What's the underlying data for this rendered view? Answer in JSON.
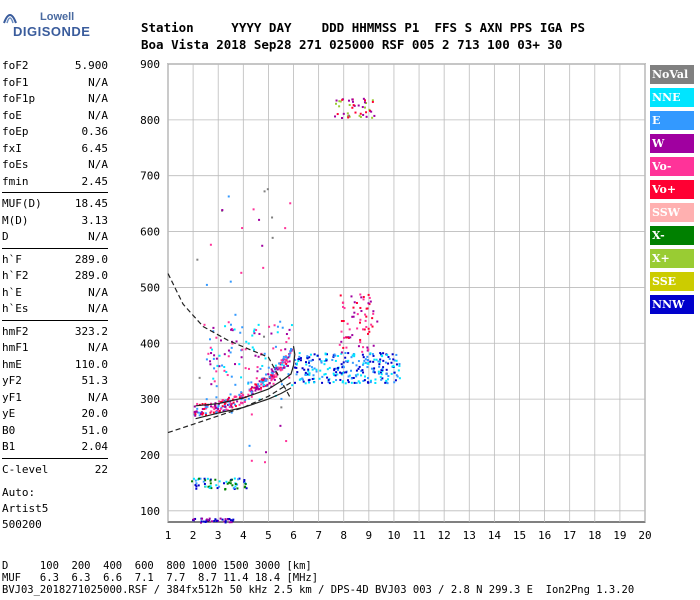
{
  "logo": {
    "brand": "Lowell",
    "product": "DIGISONDE"
  },
  "header": {
    "labels": "Station     YYYY DAY    DDD HHMMSS P1  FFS S AXN PPS IGA PS",
    "values": "Boa Vista 2018 Sep28 271 025000 RSF 005 2 713 100 03+ 30"
  },
  "params": {
    "group1": [
      {
        "name": "foF2",
        "value": "5.900"
      },
      {
        "name": "foF1",
        "value": "N/A"
      },
      {
        "name": "foF1p",
        "value": "N/A"
      },
      {
        "name": "foE",
        "value": "N/A"
      },
      {
        "name": "foEp",
        "value": "0.36"
      },
      {
        "name": "fxI",
        "value": "6.45"
      },
      {
        "name": "foEs",
        "value": "N/A"
      },
      {
        "name": "fmin",
        "value": "2.45"
      }
    ],
    "group2": [
      {
        "name": "MUF(D)",
        "value": "18.45"
      },
      {
        "name": "M(D)",
        "value": "3.13"
      },
      {
        "name": "D",
        "value": "N/A"
      }
    ],
    "group3": [
      {
        "name": "h`F",
        "value": "289.0"
      },
      {
        "name": "h`F2",
        "value": "289.0"
      },
      {
        "name": "h`E",
        "value": "N/A"
      },
      {
        "name": "h`Es",
        "value": "N/A"
      }
    ],
    "group4": [
      {
        "name": "hmF2",
        "value": "323.2"
      },
      {
        "name": "hmF1",
        "value": "N/A"
      },
      {
        "name": "hmE",
        "value": "110.0"
      },
      {
        "name": "yF2",
        "value": "51.3"
      },
      {
        "name": "yF1",
        "value": "N/A"
      },
      {
        "name": "yE",
        "value": "20.0"
      },
      {
        "name": "B0",
        "value": "51.0"
      },
      {
        "name": "B1",
        "value": "2.04"
      }
    ],
    "group5": [
      {
        "name": "C-level",
        "value": "22"
      }
    ]
  },
  "autoscaling": {
    "line1": "Auto:",
    "line2": "Artist5",
    "line3": "500200"
  },
  "legend": [
    {
      "label": "NoVal",
      "color": "#808080"
    },
    {
      "label": "NNE",
      "color": "#00e5ff"
    },
    {
      "label": "E",
      "color": "#3399ff"
    },
    {
      "label": "W",
      "color": "#a000a0"
    },
    {
      "label": "Vo-",
      "color": "#ff3399"
    },
    {
      "label": "Vo+",
      "color": "#ff0033"
    },
    {
      "label": "SSW",
      "color": "#ffb0b0"
    },
    {
      "label": "X-",
      "color": "#008000"
    },
    {
      "label": "X+",
      "color": "#99cc33"
    },
    {
      "label": "SSE",
      "color": "#cccc00"
    },
    {
      "label": "NNW",
      "color": "#0000cc"
    }
  ],
  "footer": {
    "line1": "D     100  200  400  600  800 1000 1500 3000 [km]",
    "line2": "MUF   6.3  6.3  6.6  7.1  7.7  8.7 11.4 18.4 [MHz]",
    "line3": "BVJ03_2018271025000.RSF / 384fx512h 50 kHz 2.5 km / DPS-4D BVJ03 003 / 2.8 N 299.3 E  Ion2Png 1.3.20"
  },
  "chart_data": {
    "type": "scatter",
    "title": "",
    "xlabel": "",
    "ylabel": "",
    "xlim": [
      1,
      20
    ],
    "ylim": [
      80,
      900
    ],
    "x_ticks": [
      1,
      2,
      3,
      4,
      5,
      6,
      7,
      8,
      9,
      10,
      11,
      12,
      13,
      14,
      15,
      16,
      17,
      18,
      19,
      20
    ],
    "y_ticks": [
      100,
      200,
      300,
      400,
      500,
      600,
      700,
      800,
      900
    ],
    "grid": true,
    "legend_position": "right",
    "clusters": [
      {
        "name": "F2 trace",
        "color_set": [
          "#ff0033",
          "#a000a0",
          "#ff3399",
          "#3399ff"
        ],
        "x_range": [
          2.0,
          5.9
        ],
        "y_start": 283,
        "y_end": 385,
        "count": 260
      },
      {
        "name": "F2 upper scatter",
        "color_set": [
          "#3399ff",
          "#a000a0",
          "#00e5ff",
          "#ff3399"
        ],
        "x_range": [
          2.5,
          6.0
        ],
        "y_range": [
          300,
          440
        ],
        "count": 120
      },
      {
        "name": "F2 spread",
        "color_set": [
          "#0000cc",
          "#3399ff",
          "#00e5ff"
        ],
        "x_range": [
          6.0,
          10.2
        ],
        "y_range": [
          330,
          385
        ],
        "count": 260
      },
      {
        "name": "F2 spread upper",
        "color_set": [
          "#a000a0",
          "#ff3399",
          "#ff0033"
        ],
        "x_range": [
          7.8,
          9.3
        ],
        "y_range": [
          385,
          490
        ],
        "count": 70
      },
      {
        "name": "800 km band",
        "color_set": [
          "#a000a0",
          "#ff0033",
          "#99cc33"
        ],
        "x_range": [
          7.6,
          9.2
        ],
        "y_range": [
          805,
          840
        ],
        "count": 45
      },
      {
        "name": "E band",
        "color_set": [
          "#00e5ff",
          "#3399ff",
          "#0000cc",
          "#008000"
        ],
        "x_range": [
          1.9,
          4.1
        ],
        "y_range": [
          140,
          160
        ],
        "count": 60
      },
      {
        "name": "low band",
        "color_set": [
          "#0000cc",
          "#a000a0"
        ],
        "x_range": [
          1.8,
          3.6
        ],
        "y_range": [
          80,
          88
        ],
        "count": 40
      },
      {
        "name": "sparse",
        "color_set": [
          "#3399ff",
          "#ff3399",
          "#a000a0",
          "#808080"
        ],
        "x_range": [
          2.0,
          6.0
        ],
        "y_range": [
          180,
          700
        ],
        "count": 40
      }
    ],
    "lines": [
      {
        "name": "dashed",
        "style": "dashed",
        "points": [
          [
            1.0,
            525
          ],
          [
            1.6,
            470
          ],
          [
            2.4,
            430
          ],
          [
            3.4,
            405
          ],
          [
            4.2,
            390
          ],
          [
            5.0,
            375
          ],
          [
            5.9,
            300
          ]
        ]
      },
      {
        "name": "lower dashed",
        "style": "dashed",
        "points": [
          [
            1.0,
            240
          ],
          [
            2.0,
            255
          ],
          [
            3.0,
            270
          ],
          [
            4.0,
            285
          ],
          [
            5.0,
            305
          ],
          [
            5.9,
            330
          ]
        ]
      },
      {
        "name": "profile",
        "style": "solid",
        "points": [
          [
            2.1,
            288
          ],
          [
            3.0,
            292
          ],
          [
            4.0,
            302
          ],
          [
            5.0,
            318
          ],
          [
            5.6,
            335
          ],
          [
            5.9,
            345
          ],
          [
            6.0,
            360
          ],
          [
            6.05,
            380
          ],
          [
            6.0,
            395
          ]
        ]
      },
      {
        "name": "lower profile",
        "style": "solid",
        "points": [
          [
            2.1,
            265
          ],
          [
            3.0,
            275
          ],
          [
            4.0,
            285
          ],
          [
            5.0,
            300
          ],
          [
            5.5,
            310
          ],
          [
            5.9,
            320
          ]
        ]
      }
    ]
  }
}
